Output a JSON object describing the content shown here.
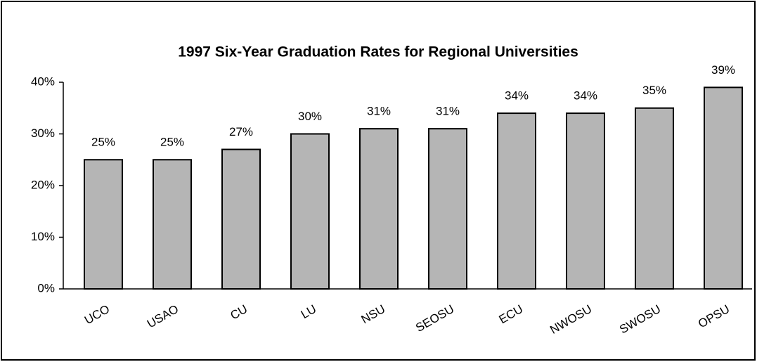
{
  "chart_data": {
    "type": "bar",
    "title": "1997 Six-Year Graduation Rates for Regional Universities",
    "categories": [
      "UCO",
      "USAO",
      "CU",
      "LU",
      "NSU",
      "SEOSU",
      "ECU",
      "NWOSU",
      "SWOSU",
      "OPSU"
    ],
    "values": [
      25,
      25,
      27,
      30,
      31,
      31,
      34,
      34,
      35,
      39
    ],
    "value_labels": [
      "25%",
      "25%",
      "27%",
      "30%",
      "31%",
      "31%",
      "34%",
      "34%",
      "35%",
      "39%"
    ],
    "color": "#b5b5b5",
    "ylim": [
      0,
      40
    ],
    "yticks": [
      {
        "value": 0,
        "label": "0%"
      },
      {
        "value": 10,
        "label": "10%"
      },
      {
        "value": 20,
        "label": "20%"
      },
      {
        "value": 30,
        "label": "30%"
      },
      {
        "value": 40,
        "label": "40%"
      }
    ],
    "grid": false
  }
}
